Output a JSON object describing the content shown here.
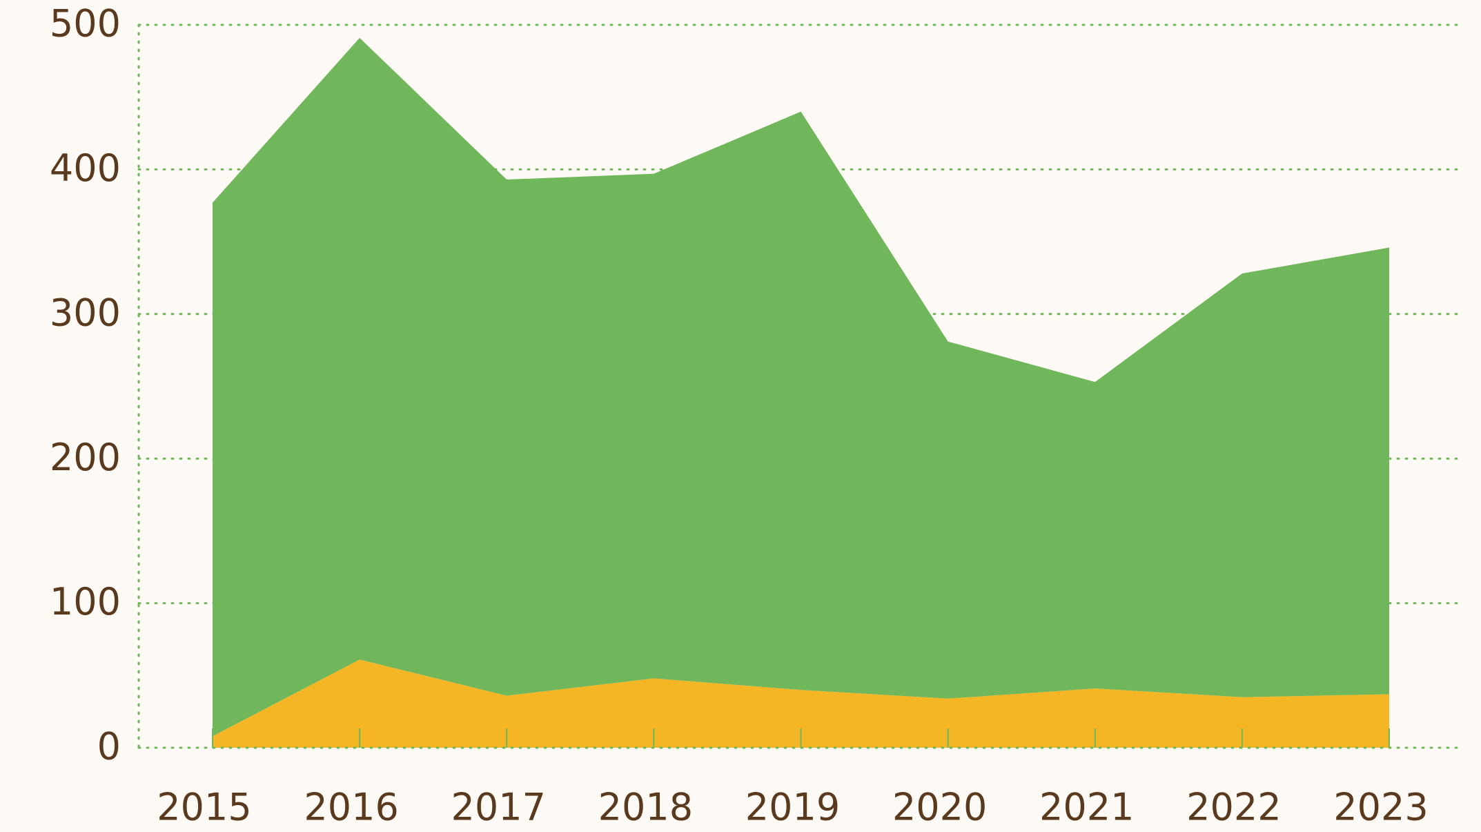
{
  "chart_data": {
    "type": "stacked_area",
    "categories": [
      "2015",
      "2016",
      "2017",
      "2018",
      "2019",
      "2020",
      "2021",
      "2022",
      "2023"
    ],
    "series": [
      {
        "color": "#f5b626",
        "values": [
          8,
          61,
          36,
          48,
          40,
          34,
          41,
          35,
          37
        ]
      },
      {
        "color": "#70b65a",
        "values": [
          369,
          430,
          357,
          349,
          400,
          247,
          212,
          293,
          309
        ]
      }
    ],
    "ylim": [
      0,
      500
    ],
    "yticks": [
      0,
      100,
      200,
      300,
      400,
      500
    ],
    "grid": true
  }
}
